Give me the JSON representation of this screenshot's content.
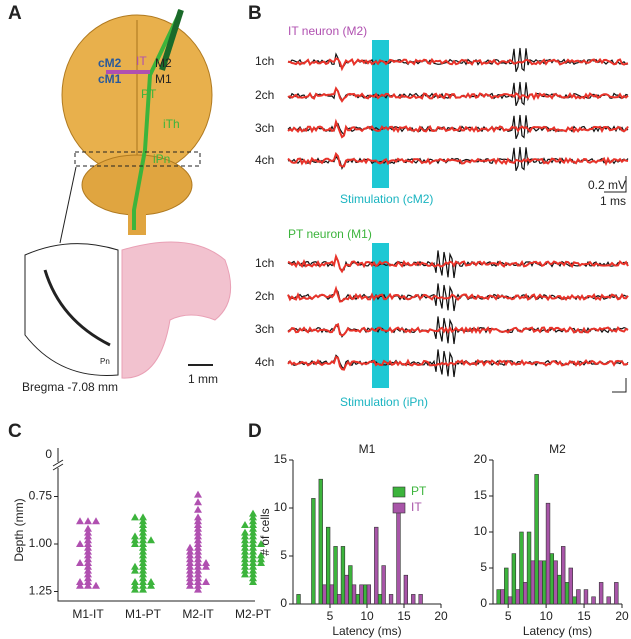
{
  "panels": {
    "a": {
      "label": "A",
      "it": "IT",
      "cm2": "cM2",
      "cm1": "cM1",
      "m2": "M2",
      "m1": "M1",
      "pt": "PT",
      "ith": "iTh",
      "ipn": "iPn",
      "pn": "Pn",
      "bregma": "Bregma -7.08 mm",
      "scale": "1 mm"
    },
    "b": {
      "label": "B",
      "channels": [
        "1ch",
        "2ch",
        "3ch",
        "4ch"
      ],
      "top_title": "IT neuron (M2)",
      "top_stim": "Stimulation (cM2)",
      "scale_v": "0.2 mV",
      "scale_t": "1 ms",
      "bottom_title": "PT neuron (M1)",
      "bottom_stim": "Stimulation (iPn)"
    }
  },
  "chart_data": [
    {
      "type": "strip",
      "panel_label": "C",
      "ylabel": "Depth (mm)",
      "categories": [
        "M1-IT",
        "M1-PT",
        "M2-IT",
        "M2-PT"
      ],
      "colors": [
        "#b050b0",
        "#3cb43c",
        "#b050b0",
        "#3cb43c"
      ],
      "values": [
        [
          0.88,
          0.88,
          0.88,
          0.92,
          0.94,
          0.96,
          0.98,
          1.0,
          1.0,
          1.02,
          1.04,
          1.06,
          1.08,
          1.1,
          1.1,
          1.12,
          1.14,
          1.16,
          1.18,
          1.2,
          1.2,
          1.22,
          1.22,
          1.22
        ],
        [
          0.86,
          0.86,
          0.88,
          0.9,
          0.92,
          0.94,
          0.96,
          0.96,
          0.98,
          0.98,
          0.98,
          1.0,
          1.0,
          1.02,
          1.04,
          1.06,
          1.08,
          1.1,
          1.12,
          1.12,
          1.14,
          1.14,
          1.16,
          1.18,
          1.2,
          1.2,
          1.2,
          1.22,
          1.22,
          1.22,
          1.24,
          1.24
        ],
        [
          0.74,
          0.78,
          0.82,
          0.86,
          0.88,
          0.9,
          0.92,
          0.94,
          0.96,
          0.98,
          1.0,
          1.02,
          1.02,
          1.04,
          1.04,
          1.06,
          1.06,
          1.08,
          1.08,
          1.1,
          1.1,
          1.1,
          1.12,
          1.12,
          1.12,
          1.14,
          1.14,
          1.16,
          1.16,
          1.18,
          1.18,
          1.2,
          1.2,
          1.2,
          1.22,
          1.22,
          1.24
        ],
        [
          0.84,
          0.86,
          0.88,
          0.9,
          0.9,
          0.92,
          0.94,
          0.94,
          0.96,
          0.96,
          0.98,
          0.98,
          1.0,
          1.0,
          1.0,
          1.02,
          1.02,
          1.04,
          1.04,
          1.06,
          1.06,
          1.06,
          1.08,
          1.08,
          1.08,
          1.1,
          1.1,
          1.1,
          1.12,
          1.12,
          1.14,
          1.14,
          1.16,
          1.16,
          1.18,
          1.2
        ]
      ],
      "ylim": [
        1.3,
        0.6
      ],
      "yticks": [
        0.75,
        {
          "value": 1,
          "label": "1.00"
        },
        1.25
      ],
      "break_tick": 0
    },
    {
      "type": "bar",
      "panel_label": "D",
      "title": "M1",
      "ylabel": "# of cells",
      "xlabel": "Latency (ms)",
      "x": [
        1,
        2,
        3,
        4,
        5,
        6,
        7,
        8,
        9,
        10,
        11,
        12,
        13,
        14,
        15,
        16,
        17
      ],
      "series": [
        {
          "name": "PT",
          "color": "#3cb43c",
          "values": [
            1,
            0,
            11,
            13,
            8,
            6,
            6,
            4,
            1,
            2,
            0,
            1,
            0,
            0,
            0,
            0,
            0
          ]
        },
        {
          "name": "IT",
          "color": "#a855a8",
          "values": [
            0,
            0,
            0,
            2,
            2,
            1,
            3,
            2,
            2,
            2,
            8,
            4,
            1,
            10,
            3,
            1,
            1
          ]
        }
      ],
      "xlim": [
        0,
        20
      ],
      "xticks": [
        5,
        10,
        15,
        20
      ],
      "ylim": [
        0,
        15
      ],
      "yticks": [
        0,
        5,
        10,
        15
      ],
      "legend": "upper right"
    },
    {
      "type": "bar",
      "title": "M2",
      "xlabel": "Latency (ms)",
      "x": [
        4,
        5,
        6,
        7,
        8,
        9,
        10,
        11,
        12,
        13,
        14,
        15,
        16,
        17,
        18,
        19
      ],
      "series": [
        {
          "name": "PT",
          "color": "#3cb43c",
          "values": [
            2,
            5,
            7,
            10,
            10,
            18,
            6,
            7,
            4,
            3,
            1,
            0,
            0,
            0,
            0,
            0
          ]
        },
        {
          "name": "IT",
          "color": "#a855a8",
          "values": [
            2,
            1,
            2,
            3,
            6,
            6,
            14,
            6,
            8,
            5,
            2,
            2,
            1,
            3,
            1,
            3
          ]
        }
      ],
      "xlim": [
        3,
        20
      ],
      "xticks": [
        5,
        10,
        15,
        20
      ],
      "ylim": [
        0,
        20
      ],
      "yticks": [
        0,
        5,
        10,
        15,
        20
      ]
    }
  ]
}
